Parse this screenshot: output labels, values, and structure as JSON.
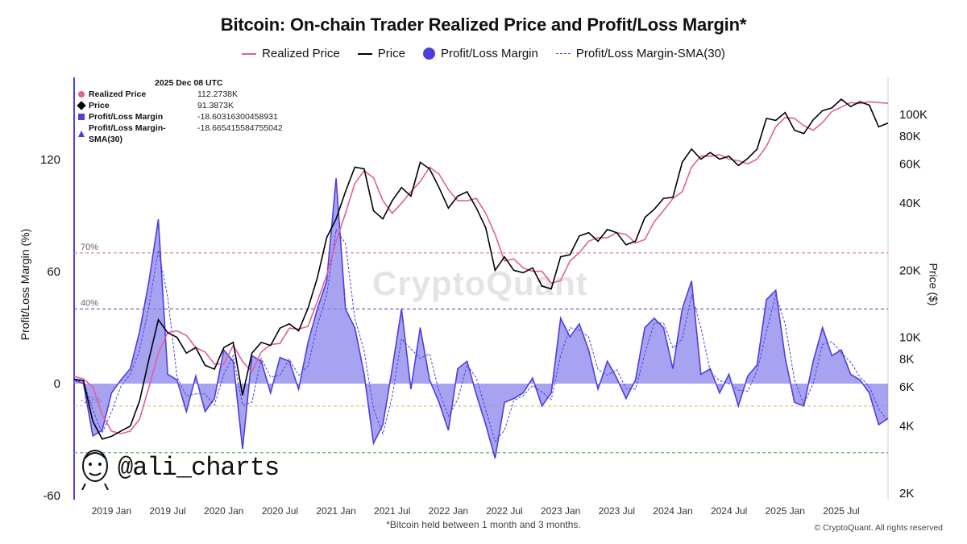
{
  "chart_data": {
    "type": "line",
    "title": "Bitcoin: On-chain Trader Realized Price and Profit/Loss Margin*",
    "footnote": "*Bitcoin held between 1 month and 3 months.",
    "legend": [
      {
        "name": "Realized Price",
        "color": "#e0609a",
        "style": "line"
      },
      {
        "name": "Price",
        "color": "#000000",
        "style": "line"
      },
      {
        "name": "Profit/Loss Margin",
        "color": "#4b3fe0",
        "style": "dot"
      },
      {
        "name": "Profit/Loss Margin-SMA(30)",
        "color": "#4b3fe0",
        "style": "dash"
      }
    ],
    "y_left": {
      "label": "Profit/Loss Margin (%)",
      "ticks": [
        "120",
        "60",
        "0",
        "-60"
      ],
      "range": [
        -60,
        120
      ]
    },
    "y_right": {
      "label": "Price ($)",
      "scale": "log",
      "ticks": [
        "100K",
        "80K",
        "60K",
        "40K",
        "20K",
        "10K",
        "8K",
        "6K",
        "4K",
        "2K"
      ],
      "range": [
        2000,
        100000
      ]
    },
    "x": {
      "range": [
        "2018-09",
        "2025-12"
      ],
      "ticks": [
        "2019 Jan",
        "2019 Jul",
        "2020 Jan",
        "2020 Jul",
        "2021 Jan",
        "2021 Jul",
        "2022 Jan",
        "2022 Jul",
        "2023 Jan",
        "2023 Jul",
        "2024 Jan",
        "2024 Jul",
        "2025 Jan",
        "2025 Jul"
      ]
    },
    "reference_lines": [
      {
        "label": "70%",
        "value": 70,
        "color": "#e07a90"
      },
      {
        "label": "40%",
        "value": 40,
        "color": "#5a55c8"
      },
      {
        "label": "-12%",
        "value": -12,
        "color": "#e8b86a"
      },
      {
        "label": "",
        "value": -37,
        "color": "#63b563"
      }
    ],
    "tooltip": {
      "date": "2025 Dec 08 UTC",
      "rows": [
        {
          "name": "Realized Price",
          "value": "112.2738K"
        },
        {
          "name": "Price",
          "value": "91.3873K"
        },
        {
          "name": "Profit/Loss Margin",
          "value": "-18.60316300458931"
        },
        {
          "name": "Profit/Loss Margin-SMA(30)",
          "value": "-18.665415584755042"
        }
      ]
    },
    "series": [
      {
        "name": "Price",
        "points": [
          [
            "2018-09",
            6500
          ],
          [
            "2018-10",
            6400
          ],
          [
            "2018-11",
            4200
          ],
          [
            "2018-12",
            3500
          ],
          [
            "2019-01",
            3600
          ],
          [
            "2019-02",
            3800
          ],
          [
            "2019-03",
            4000
          ],
          [
            "2019-04",
            5200
          ],
          [
            "2019-05",
            8000
          ],
          [
            "2019-06",
            12000
          ],
          [
            "2019-07",
            10500
          ],
          [
            "2019-08",
            10000
          ],
          [
            "2019-09",
            8500
          ],
          [
            "2019-10",
            9000
          ],
          [
            "2019-11",
            7500
          ],
          [
            "2019-12",
            7200
          ],
          [
            "2020-01",
            9000
          ],
          [
            "2020-02",
            9500
          ],
          [
            "2020-03",
            5500
          ],
          [
            "2020-04",
            8500
          ],
          [
            "2020-05",
            9500
          ],
          [
            "2020-06",
            9200
          ],
          [
            "2020-07",
            11000
          ],
          [
            "2020-08",
            11500
          ],
          [
            "2020-09",
            10700
          ],
          [
            "2020-10",
            13500
          ],
          [
            "2020-11",
            18500
          ],
          [
            "2020-12",
            28000
          ],
          [
            "2021-01",
            34000
          ],
          [
            "2021-02",
            45000
          ],
          [
            "2021-03",
            58000
          ],
          [
            "2021-04",
            57000
          ],
          [
            "2021-05",
            37000
          ],
          [
            "2021-06",
            34000
          ],
          [
            "2021-07",
            41000
          ],
          [
            "2021-08",
            47000
          ],
          [
            "2021-09",
            43000
          ],
          [
            "2021-10",
            61000
          ],
          [
            "2021-11",
            57000
          ],
          [
            "2021-12",
            47000
          ],
          [
            "2022-01",
            38000
          ],
          [
            "2022-02",
            43000
          ],
          [
            "2022-03",
            45000
          ],
          [
            "2022-04",
            38000
          ],
          [
            "2022-05",
            31000
          ],
          [
            "2022-06",
            20000
          ],
          [
            "2022-07",
            23000
          ],
          [
            "2022-08",
            20000
          ],
          [
            "2022-09",
            19500
          ],
          [
            "2022-10",
            20500
          ],
          [
            "2022-11",
            17000
          ],
          [
            "2022-12",
            16500
          ],
          [
            "2023-01",
            23000
          ],
          [
            "2023-02",
            23500
          ],
          [
            "2023-03",
            28500
          ],
          [
            "2023-04",
            29500
          ],
          [
            "2023-05",
            27000
          ],
          [
            "2023-06",
            30500
          ],
          [
            "2023-07",
            29500
          ],
          [
            "2023-08",
            26000
          ],
          [
            "2023-09",
            27000
          ],
          [
            "2023-10",
            34500
          ],
          [
            "2023-11",
            37500
          ],
          [
            "2023-12",
            42000
          ],
          [
            "2024-01",
            42500
          ],
          [
            "2024-02",
            61000
          ],
          [
            "2024-03",
            70000
          ],
          [
            "2024-04",
            63000
          ],
          [
            "2024-05",
            67500
          ],
          [
            "2024-06",
            63000
          ],
          [
            "2024-07",
            65000
          ],
          [
            "2024-08",
            59000
          ],
          [
            "2024-09",
            63500
          ],
          [
            "2024-10",
            70000
          ],
          [
            "2024-11",
            96000
          ],
          [
            "2024-12",
            94000
          ],
          [
            "2025-01",
            102000
          ],
          [
            "2025-02",
            85000
          ],
          [
            "2025-03",
            82000
          ],
          [
            "2025-04",
            94500
          ],
          [
            "2025-05",
            104000
          ],
          [
            "2025-06",
            107000
          ],
          [
            "2025-07",
            117000
          ],
          [
            "2025-08",
            108500
          ],
          [
            "2025-09",
            114000
          ],
          [
            "2025-10",
            110000
          ],
          [
            "2025-11",
            88000
          ],
          [
            "2025-12",
            91387
          ]
        ]
      },
      {
        "name": "Realized Price",
        "points": [
          [
            "2018-09",
            6700
          ],
          [
            "2018-10",
            6500
          ],
          [
            "2018-11",
            6000
          ],
          [
            "2018-12",
            4500
          ],
          [
            "2019-01",
            3800
          ],
          [
            "2019-02",
            3700
          ],
          [
            "2019-03",
            3800
          ],
          [
            "2019-04",
            4300
          ],
          [
            "2019-05",
            6000
          ],
          [
            "2019-06",
            8500
          ],
          [
            "2019-07",
            10500
          ],
          [
            "2019-08",
            10700
          ],
          [
            "2019-09",
            10200
          ],
          [
            "2019-10",
            9000
          ],
          [
            "2019-11",
            8600
          ],
          [
            "2019-12",
            7600
          ],
          [
            "2020-01",
            7600
          ],
          [
            "2020-02",
            9200
          ],
          [
            "2020-03",
            7800
          ],
          [
            "2020-04",
            7000
          ],
          [
            "2020-05",
            8600
          ],
          [
            "2020-06",
            9300
          ],
          [
            "2020-07",
            9400
          ],
          [
            "2020-08",
            11000
          ],
          [
            "2020-09",
            10900
          ],
          [
            "2020-10",
            11200
          ],
          [
            "2020-11",
            14500
          ],
          [
            "2020-12",
            19000
          ],
          [
            "2021-01",
            27000
          ],
          [
            "2021-02",
            36000
          ],
          [
            "2021-03",
            49000
          ],
          [
            "2021-04",
            56000
          ],
          [
            "2021-05",
            52000
          ],
          [
            "2021-06",
            41000
          ],
          [
            "2021-07",
            36000
          ],
          [
            "2021-08",
            40000
          ],
          [
            "2021-09",
            45000
          ],
          [
            "2021-10",
            50000
          ],
          [
            "2021-11",
            58000
          ],
          [
            "2021-12",
            54000
          ],
          [
            "2022-01",
            46000
          ],
          [
            "2022-02",
            41000
          ],
          [
            "2022-03",
            41000
          ],
          [
            "2022-04",
            42000
          ],
          [
            "2022-05",
            36000
          ],
          [
            "2022-06",
            29000
          ],
          [
            "2022-07",
            22000
          ],
          [
            "2022-08",
            22500
          ],
          [
            "2022-09",
            20500
          ],
          [
            "2022-10",
            19800
          ],
          [
            "2022-11",
            19800
          ],
          [
            "2022-12",
            17500
          ],
          [
            "2023-01",
            18000
          ],
          [
            "2023-02",
            22000
          ],
          [
            "2023-03",
            24000
          ],
          [
            "2023-04",
            27000
          ],
          [
            "2023-05",
            28000
          ],
          [
            "2023-06",
            28000
          ],
          [
            "2023-07",
            29500
          ],
          [
            "2023-08",
            29000
          ],
          [
            "2023-09",
            26500
          ],
          [
            "2023-10",
            27500
          ],
          [
            "2023-11",
            33000
          ],
          [
            "2023-12",
            37000
          ],
          [
            "2024-01",
            42000
          ],
          [
            "2024-02",
            45000
          ],
          [
            "2024-03",
            58000
          ],
          [
            "2024-04",
            65000
          ],
          [
            "2024-05",
            65000
          ],
          [
            "2024-06",
            66000
          ],
          [
            "2024-07",
            63000
          ],
          [
            "2024-08",
            62000
          ],
          [
            "2024-09",
            60000
          ],
          [
            "2024-10",
            63000
          ],
          [
            "2024-11",
            72000
          ],
          [
            "2024-12",
            88000
          ],
          [
            "2025-01",
            97000
          ],
          [
            "2025-02",
            96000
          ],
          [
            "2025-03",
            89000
          ],
          [
            "2025-04",
            85000
          ],
          [
            "2025-05",
            92000
          ],
          [
            "2025-06",
            103000
          ],
          [
            "2025-07",
            108000
          ],
          [
            "2025-08",
            113000
          ],
          [
            "2025-09",
            112000
          ],
          [
            "2025-10",
            114000
          ],
          [
            "2025-11",
            113000
          ],
          [
            "2025-12",
            112274
          ]
        ]
      },
      {
        "name": "Profit/Loss Margin",
        "points": [
          [
            "2018-09",
            2
          ],
          [
            "2018-10",
            0
          ],
          [
            "2018-11",
            -28
          ],
          [
            "2018-12",
            -25
          ],
          [
            "2019-01",
            -5
          ],
          [
            "2019-02",
            2
          ],
          [
            "2019-03",
            8
          ],
          [
            "2019-04",
            28
          ],
          [
            "2019-05",
            55
          ],
          [
            "2019-06",
            88
          ],
          [
            "2019-07",
            5
          ],
          [
            "2019-08",
            2
          ],
          [
            "2019-09",
            -15
          ],
          [
            "2019-10",
            4
          ],
          [
            "2019-11",
            -15
          ],
          [
            "2019-12",
            -8
          ],
          [
            "2020-01",
            18
          ],
          [
            "2020-02",
            12
          ],
          [
            "2020-03",
            -35
          ],
          [
            "2020-04",
            15
          ],
          [
            "2020-05",
            12
          ],
          [
            "2020-06",
            -5
          ],
          [
            "2020-07",
            14
          ],
          [
            "2020-08",
            12
          ],
          [
            "2020-09",
            -3
          ],
          [
            "2020-10",
            22
          ],
          [
            "2020-11",
            40
          ],
          [
            "2020-12",
            55
          ],
          [
            "2021-01",
            110
          ],
          [
            "2021-02",
            40
          ],
          [
            "2021-03",
            30
          ],
          [
            "2021-04",
            5
          ],
          [
            "2021-05",
            -32
          ],
          [
            "2021-06",
            -22
          ],
          [
            "2021-07",
            8
          ],
          [
            "2021-08",
            40
          ],
          [
            "2021-09",
            -3
          ],
          [
            "2021-10",
            30
          ],
          [
            "2021-11",
            2
          ],
          [
            "2021-12",
            -10
          ],
          [
            "2022-01",
            -25
          ],
          [
            "2022-02",
            8
          ],
          [
            "2022-03",
            12
          ],
          [
            "2022-04",
            -6
          ],
          [
            "2022-05",
            -22
          ],
          [
            "2022-06",
            -40
          ],
          [
            "2022-07",
            -10
          ],
          [
            "2022-08",
            -8
          ],
          [
            "2022-09",
            -5
          ],
          [
            "2022-10",
            3
          ],
          [
            "2022-11",
            -12
          ],
          [
            "2022-12",
            -5
          ],
          [
            "2023-01",
            35
          ],
          [
            "2023-02",
            25
          ],
          [
            "2023-03",
            32
          ],
          [
            "2023-04",
            18
          ],
          [
            "2023-05",
            -3
          ],
          [
            "2023-06",
            12
          ],
          [
            "2023-07",
            3
          ],
          [
            "2023-08",
            -8
          ],
          [
            "2023-09",
            2
          ],
          [
            "2023-10",
            30
          ],
          [
            "2023-11",
            35
          ],
          [
            "2023-12",
            30
          ],
          [
            "2024-01",
            8
          ],
          [
            "2024-02",
            40
          ],
          [
            "2024-03",
            55
          ],
          [
            "2024-04",
            5
          ],
          [
            "2024-05",
            8
          ],
          [
            "2024-06",
            -5
          ],
          [
            "2024-07",
            5
          ],
          [
            "2024-08",
            -12
          ],
          [
            "2024-09",
            4
          ],
          [
            "2024-10",
            10
          ],
          [
            "2024-11",
            45
          ],
          [
            "2024-12",
            50
          ],
          [
            "2025-01",
            14
          ],
          [
            "2025-02",
            -10
          ],
          [
            "2025-03",
            -12
          ],
          [
            "2025-04",
            12
          ],
          [
            "2025-05",
            30
          ],
          [
            "2025-06",
            15
          ],
          [
            "2025-07",
            18
          ],
          [
            "2025-08",
            5
          ],
          [
            "2025-09",
            2
          ],
          [
            "2025-10",
            -5
          ],
          [
            "2025-11",
            -22
          ],
          [
            "2025-12",
            -18.6
          ]
        ]
      }
    ]
  },
  "watermark": "CryptoQuant",
  "handle": "@ali_charts",
  "copyright": "© CryptoQuant. All rights reserved",
  "colors": {
    "bg": "#ffffff",
    "accent": "#4b3fe0",
    "fill": "#8b84ec",
    "realized": "#e0609a",
    "price": "#000000"
  }
}
